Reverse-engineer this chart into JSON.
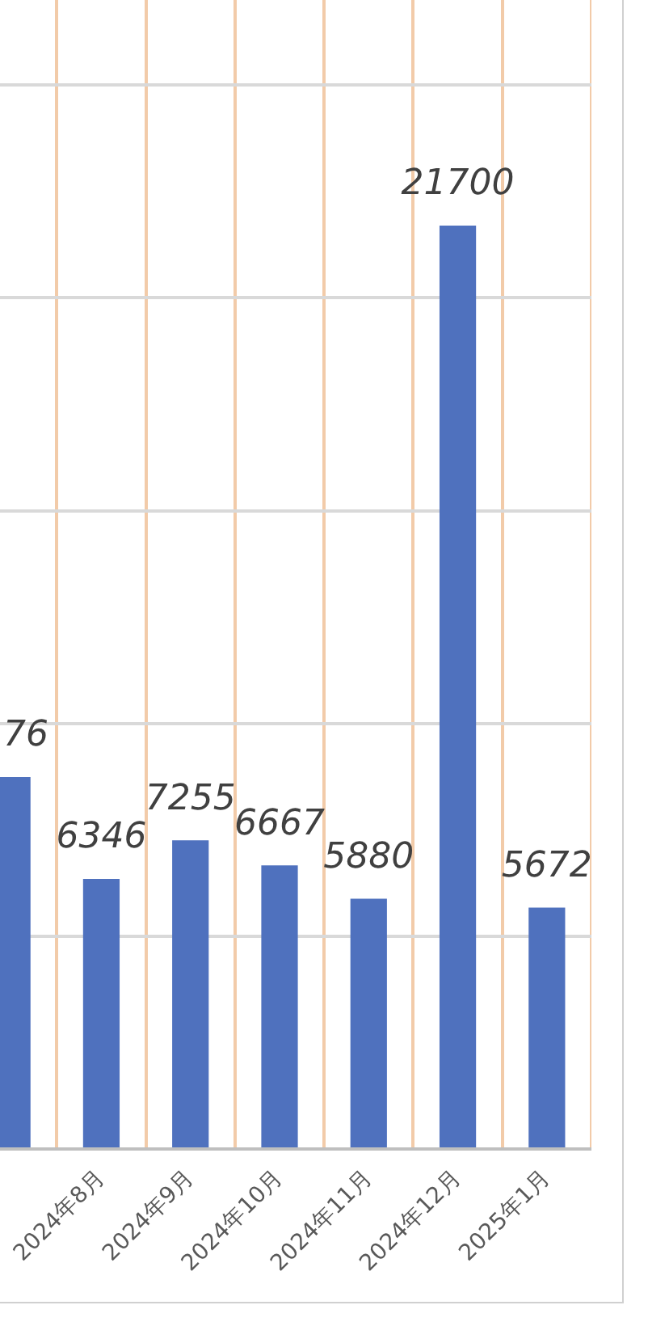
{
  "chart_data": {
    "type": "bar",
    "categories": [
      null,
      "2024年8月",
      "2024年9月",
      "2024年10月",
      "2024年11月",
      "2024年12月",
      "2025年1月"
    ],
    "values": [
      8740,
      6346,
      7255,
      6667,
      5880,
      21700,
      5672
    ],
    "annotations": [
      "76"
    ],
    "value_labels": [
      null,
      "6346",
      "7255",
      "6667",
      "5880",
      "21700",
      "5672"
    ],
    "color": "#4f71be",
    "ylim": [
      0,
      27000
    ],
    "yticks": [
      {
        "value": 0,
        "label": null
      },
      {
        "value": 5000,
        "label": null
      },
      {
        "value": 10000,
        "label": null
      },
      {
        "value": 15000,
        "label": null
      },
      {
        "value": 20000,
        "label": null
      },
      {
        "value": 25000,
        "label": null
      }
    ],
    "grid": true,
    "tick_labels": "x"
  }
}
